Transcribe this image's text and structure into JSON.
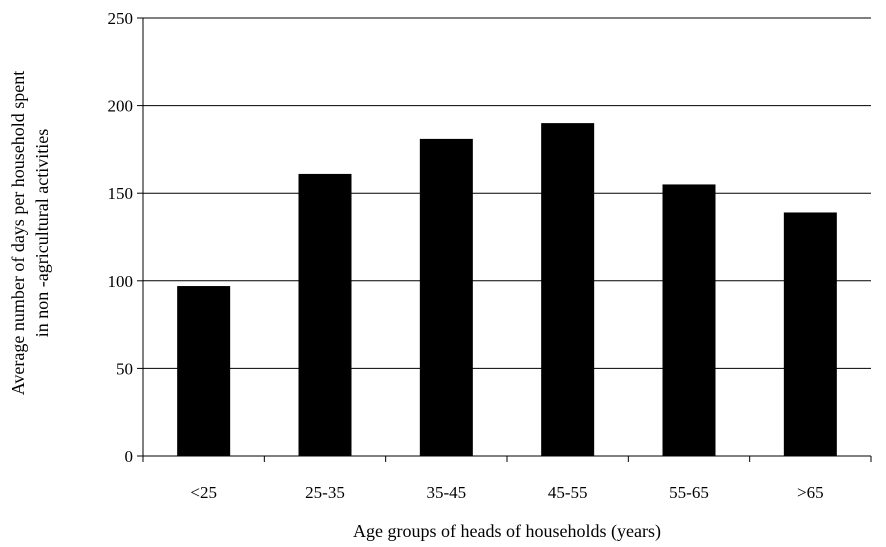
{
  "chart_data": {
    "type": "bar",
    "categories": [
      "<25",
      "25-35",
      "35-45",
      "45-55",
      "55-65",
      ">65"
    ],
    "values": [
      97,
      161,
      181,
      190,
      155,
      139
    ],
    "title": "",
    "xlabel": "Age groups of heads of households (years)",
    "ylabel_lines": [
      "Average number of days per household spent",
      "in non -agricultural activities"
    ],
    "ylim": [
      0,
      250
    ],
    "yticks": [
      0,
      50,
      100,
      150,
      200,
      250
    ],
    "grid": true,
    "legend": "none",
    "bar_color": "#000000"
  }
}
